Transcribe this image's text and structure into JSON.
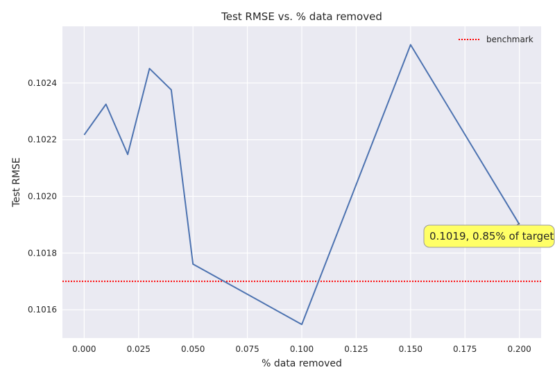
{
  "chart_data": {
    "type": "line",
    "title": "Test RMSE vs. % data removed",
    "xlabel": "% data removed",
    "ylabel": "Test RMSE",
    "xlim": [
      -0.01,
      0.21
    ],
    "ylim": [
      0.1015,
      0.1026
    ],
    "xticks": [
      0.0,
      0.025,
      0.05,
      0.075,
      0.1,
      0.125,
      0.15,
      0.175,
      0.2
    ],
    "xtick_labels": [
      "0.000",
      "0.025",
      "0.050",
      "0.075",
      "0.100",
      "0.125",
      "0.150",
      "0.175",
      "0.200"
    ],
    "yticks": [
      0.1016,
      0.1018,
      0.102,
      0.1022,
      0.1024
    ],
    "ytick_labels": [
      "0.1016",
      "0.1018",
      "0.1020",
      "0.1022",
      "0.1024"
    ],
    "grid": true,
    "legend_position": "top-right",
    "series": [
      {
        "values_x": [
          0.0,
          0.01,
          0.02,
          0.03,
          0.04,
          0.05,
          0.1,
          0.15,
          0.2
        ],
        "values_y": [
          0.102217,
          0.102325,
          0.102148,
          0.102451,
          0.102376,
          0.101761,
          0.101548,
          0.102535,
          0.101901
        ],
        "color": "#4c72b0"
      }
    ],
    "benchmark": {
      "name": "benchmark",
      "value": 0.1017,
      "color": "#ff0000"
    },
    "annotation": {
      "text": "0.1019, 0.85% of target",
      "x": 0.2,
      "y": 0.101901,
      "bg_color": "#ffff66"
    },
    "background_color": "#eaeaf2",
    "grid_color": "#ffffff"
  }
}
